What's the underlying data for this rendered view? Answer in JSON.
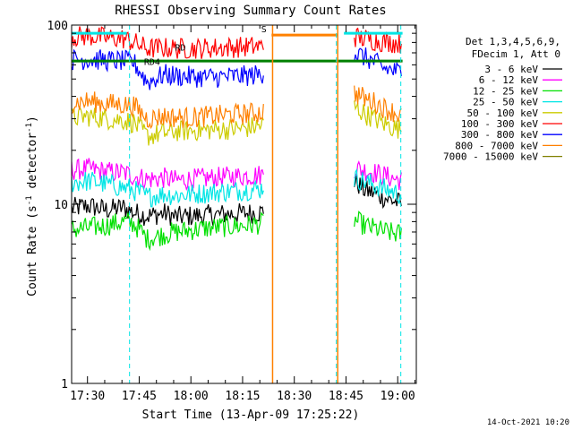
{
  "chart_data": {
    "type": "line",
    "title": "RHESSI Observing Summary Count Rates",
    "xlabel": "Start Time (13-Apr-09 17:25:22)",
    "ylabel": "Count Rate (s^-1 detector^-1)",
    "ylabel_parts": {
      "main": "Count Rate (s",
      "sup1": "-1",
      "mid": " detector",
      "sup2": "-1",
      "end": ")"
    },
    "yscale": "log",
    "ylim": [
      1,
      100
    ],
    "xlim_minutes": [
      0,
      100
    ],
    "x_tick_labels": [
      "17:30",
      "17:45",
      "18:00",
      "18:15",
      "18:30",
      "18:45",
      "19:00"
    ],
    "x_tick_minutes": [
      4.6,
      19.6,
      34.6,
      49.6,
      64.6,
      79.6,
      94.6
    ],
    "y_tick_labels": [
      "1",
      "10",
      "100"
    ],
    "y_tick_values": [
      1,
      10,
      100
    ],
    "legend_title": [
      "Det 1,3,4,5,6,9,",
      "FDecim 1, Att 0"
    ],
    "legend_position": "right",
    "footer_date": "14-Oct-2021 10:20",
    "annotations": [
      {
        "label": "RD4",
        "x_min": 21,
        "y": 60,
        "color": "#008000"
      },
      {
        "label": "RD",
        "x_min": 30,
        "y": 72,
        "color": "#008000"
      },
      {
        "label": "S",
        "x_min": 55,
        "y": 91,
        "color": "#ff8000"
      }
    ],
    "saa_bar": {
      "x_start": 58,
      "x_end": 77,
      "y": 88,
      "color": "#ff8000"
    },
    "flag_lines": [
      {
        "name": "cyan flag",
        "color": "#00e5e5",
        "y": 90,
        "segments": [
          [
            0,
            16
          ],
          [
            79,
            96
          ]
        ]
      },
      {
        "name": "dark green flag",
        "color": "#008000",
        "y": 63,
        "segments": [
          [
            0,
            96
          ]
        ]
      }
    ],
    "vlines_solid": [
      {
        "x_min": 58.3,
        "color": "#ff8000"
      },
      {
        "x_min": 77.2,
        "color": "#ff8000"
      }
    ],
    "vlines_dashed": [
      {
        "x_min": 16.8,
        "color": "#00e5e5"
      },
      {
        "x_min": 76.8,
        "color": "#00e5e5"
      },
      {
        "x_min": 95.5,
        "color": "#00e5e5"
      }
    ],
    "series": [
      {
        "name": "3 - 6 keV",
        "color": "#000000",
        "segments": [
          {
            "x": [
              0,
              5,
              10,
              15,
              18,
              22,
              27,
              30,
              35,
              40,
              45,
              50,
              55,
              56
            ],
            "y": [
              9.5,
              9.8,
              9.3,
              9.6,
              9.0,
              8.6,
              8.9,
              8.5,
              8.6,
              8.7,
              8.8,
              8.9,
              9.0,
              9.3
            ]
          },
          {
            "x": [
              82,
              85,
              88,
              90,
              93,
              96
            ],
            "y": [
              13.5,
              12.0,
              11.5,
              11.0,
              10.5,
              10.0
            ]
          }
        ]
      },
      {
        "name": "6 - 12 keV",
        "color": "#ff00ff",
        "segments": [
          {
            "x": [
              0,
              5,
              10,
              15,
              18,
              22,
              27,
              30,
              35,
              40,
              45,
              50,
              55,
              56
            ],
            "y": [
              15.5,
              15.8,
              15.2,
              15.0,
              14.4,
              13.8,
              14.0,
              13.6,
              13.8,
              14.0,
              14.2,
              14.4,
              14.6,
              15.2
            ]
          },
          {
            "x": [
              82,
              85,
              88,
              90,
              93,
              96
            ],
            "y": [
              16.0,
              15.5,
              15.0,
              14.6,
              14.0,
              13.5
            ]
          }
        ]
      },
      {
        "name": "12 - 25 keV",
        "color": "#00e000",
        "segments": [
          {
            "x": [
              0,
              5,
              10,
              15,
              18,
              22,
              27,
              30,
              35,
              40,
              45,
              50,
              55,
              56
            ],
            "y": [
              7.2,
              7.4,
              7.6,
              8.0,
              7.8,
              6.4,
              6.8,
              7.0,
              7.2,
              7.4,
              7.5,
              7.6,
              7.8,
              8.0
            ]
          },
          {
            "x": [
              82,
              85,
              88,
              90,
              93,
              96
            ],
            "y": [
              8.2,
              7.6,
              7.3,
              7.1,
              6.9,
              6.8
            ]
          }
        ]
      },
      {
        "name": "25 - 50 keV",
        "color": "#00e5e5",
        "segments": [
          {
            "x": [
              0,
              5,
              10,
              15,
              18,
              22,
              27,
              30,
              35,
              40,
              45,
              50,
              55,
              56
            ],
            "y": [
              13.2,
              13.5,
              13.0,
              12.4,
              12.0,
              11.0,
              11.4,
              11.2,
              11.4,
              11.6,
              11.8,
              12.0,
              12.2,
              12.8
            ]
          },
          {
            "x": [
              82,
              85,
              88,
              90,
              93,
              96
            ],
            "y": [
              14.0,
              13.4,
              12.8,
              12.3,
              11.8,
              11.2
            ]
          }
        ]
      },
      {
        "name": "50 - 100 keV",
        "color": "#cccc00",
        "segments": [
          {
            "x": [
              0,
              5,
              10,
              15,
              18,
              22,
              27,
              30,
              35,
              40,
              45,
              50,
              55,
              56
            ],
            "y": [
              30.5,
              31.0,
              30.0,
              29.5,
              28.5,
              24.0,
              25.0,
              25.5,
              25.8,
              26.0,
              26.2,
              26.5,
              27.5,
              29.0
            ]
          },
          {
            "x": [
              82,
              85,
              88,
              90,
              93,
              96
            ],
            "y": [
              35.0,
              32.0,
              30.0,
              28.5,
              27.0,
              26.0
            ]
          }
        ]
      },
      {
        "name": "100 - 300 keV",
        "color": "#ff0000",
        "segments": [
          {
            "x": [
              0,
              5,
              10,
              15,
              18,
              22,
              27,
              30,
              35,
              40,
              45,
              50,
              55,
              56
            ],
            "y": [
              86.0,
              87.0,
              85.0,
              84.0,
              80.0,
              74.0,
              74.5,
              74.0,
              74.0,
              74.5,
              75.0,
              75.5,
              76.0,
              80.0
            ]
          },
          {
            "x": [
              82,
              85,
              88,
              90,
              93,
              96
            ],
            "y": [
              86.0,
              84.0,
              82.0,
              81.0,
              80.0,
              79.0
            ]
          }
        ]
      },
      {
        "name": "300 - 800 keV",
        "color": "#0000ff",
        "segments": [
          {
            "x": [
              0,
              5,
              10,
              15,
              18,
              22,
              27,
              30,
              35,
              40,
              45,
              50,
              55,
              56
            ],
            "y": [
              64.0,
              64.5,
              63.5,
              63.0,
              62.0,
              48.0,
              53.0,
              52.0,
              51.5,
              51.0,
              51.5,
              52.0,
              53.0,
              56.0
            ]
          },
          {
            "x": [
              82,
              85,
              88,
              90,
              93,
              96
            ],
            "y": [
              70.0,
              66.0,
              62.0,
              58.0,
              56.0,
              54.0
            ]
          }
        ]
      },
      {
        "name": "800 - 7000 keV",
        "color": "#ff8000",
        "segments": [
          {
            "x": [
              0,
              5,
              10,
              15,
              18,
              22,
              27,
              30,
              35,
              40,
              45,
              50,
              55,
              56
            ],
            "y": [
              37.0,
              37.5,
              36.5,
              36.0,
              35.5,
              30.0,
              31.0,
              30.5,
              30.5,
              31.0,
              31.5,
              32.0,
              32.5,
              34.0
            ]
          },
          {
            "x": [
              82,
              85,
              88,
              90,
              93,
              96
            ],
            "y": [
              42.0,
              39.0,
              37.0,
              35.0,
              33.0,
              31.0
            ]
          }
        ]
      },
      {
        "name": "7000 - 15000 keV",
        "color": "#808000",
        "segments": []
      }
    ]
  }
}
